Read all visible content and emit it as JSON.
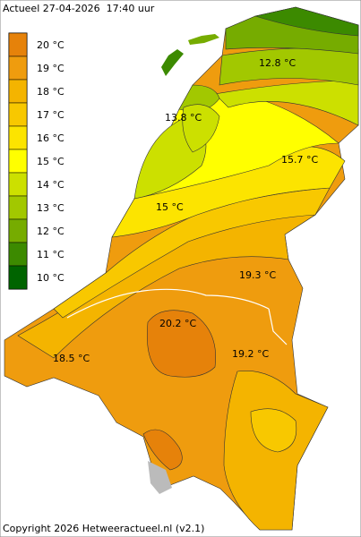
{
  "header": {
    "title": "Actueel 27-04-2026  17:40 uur"
  },
  "legend": [
    {
      "label": "20 °C",
      "color": "#e6820a"
    },
    {
      "label": "19 °C",
      "color": "#ef9c0e"
    },
    {
      "label": "18 °C",
      "color": "#f4b400"
    },
    {
      "label": "17 °C",
      "color": "#f8c800"
    },
    {
      "label": "16 °C",
      "color": "#fce400"
    },
    {
      "label": "15 °C",
      "color": "#ffff00"
    },
    {
      "label": "14 °C",
      "color": "#cce000"
    },
    {
      "label": "13 °C",
      "color": "#a2c800"
    },
    {
      "label": "12 °C",
      "color": "#76ac00"
    },
    {
      "label": "11 °C",
      "color": "#3c8a00"
    },
    {
      "label": "10 °C",
      "color": "#006400"
    }
  ],
  "map_labels": [
    {
      "text": "12.8 °C"
    },
    {
      "text": "13.8 °C"
    },
    {
      "text": "15.7 °C"
    },
    {
      "text": "15 °C"
    },
    {
      "text": "19.3 °C"
    },
    {
      "text": "20.2 °C"
    },
    {
      "text": "19.2 °C"
    },
    {
      "text": "18.5 °C"
    }
  ],
  "footer": {
    "copyright": "Copyright 2026 Hetweeractueel.nl (v2.1)"
  }
}
